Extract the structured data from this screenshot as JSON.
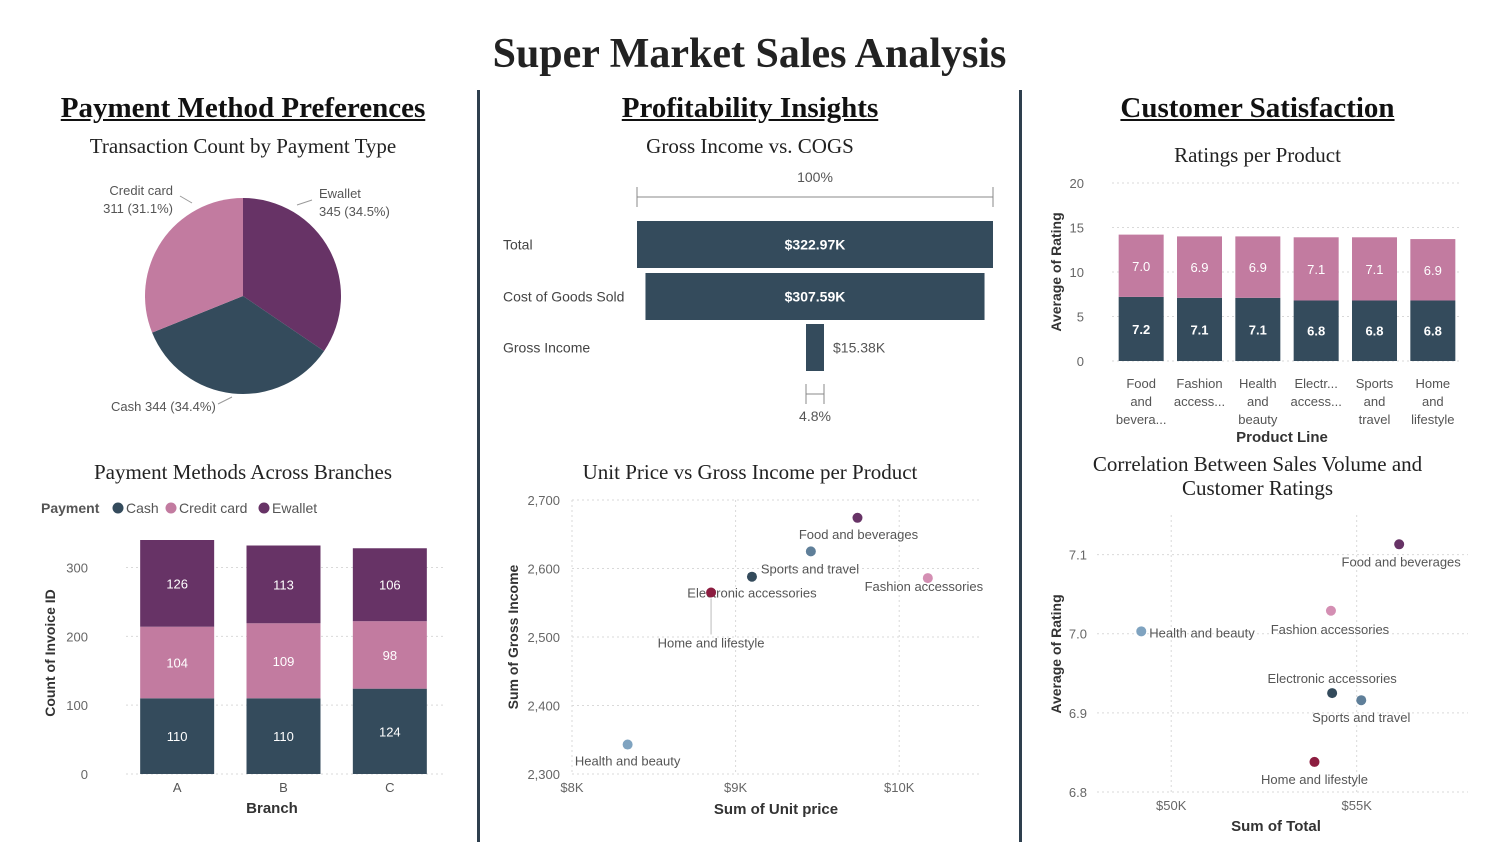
{
  "title": "Super Market Sales Analysis",
  "sections": {
    "payment": "Payment Method Preferences",
    "profit": "Profitability Insights",
    "satisfaction": "Customer Satisfaction"
  },
  "colors": {
    "cash": "#344b5c",
    "credit": "#c27ba0",
    "ewallet": "#673366",
    "funnel": "#344b5c"
  },
  "chart_data": [
    {
      "id": "pie",
      "type": "pie",
      "title": "Transaction Count by Payment Type",
      "slices": [
        {
          "label": "Ewallet",
          "value": 345,
          "pct": "34.5%",
          "color": "#673366"
        },
        {
          "label": "Cash",
          "value": 344,
          "pct": "34.4%",
          "color": "#344b5c"
        },
        {
          "label": "Credit card",
          "value": 311,
          "pct": "31.1%",
          "color": "#c27ba0"
        }
      ]
    },
    {
      "id": "funnel",
      "type": "bar",
      "title": "Gross Income vs. COGS",
      "top_label": "100%",
      "bottom_label": "4.8%",
      "categories": [
        "Total",
        "Cost of Goods Sold",
        "Gross Income"
      ],
      "values": [
        322.97,
        307.59,
        15.38
      ],
      "labels": [
        "$322.97K",
        "$307.59K",
        "$15.38K"
      ]
    },
    {
      "id": "rating_bars",
      "type": "bar",
      "title": "Ratings per Product",
      "xlabel": "Product Line",
      "ylabel": "Average of Rating",
      "ylim": [
        0,
        20
      ],
      "yticks": [
        0,
        5,
        10,
        15,
        20
      ],
      "categories": [
        [
          "Food",
          "and",
          "bevera..."
        ],
        [
          "Fashion",
          "access..."
        ],
        [
          "Health",
          "and",
          "beauty"
        ],
        [
          "Electr...",
          "access..."
        ],
        [
          "Sports",
          "and",
          "travel"
        ],
        [
          "Home",
          "and",
          "lifestyle"
        ]
      ],
      "series": [
        {
          "values": [
            7.2,
            7.1,
            7.1,
            6.8,
            6.8,
            6.8
          ],
          "color": "#344b5c"
        },
        {
          "values": [
            7.0,
            6.9,
            6.9,
            7.1,
            7.1,
            6.9
          ],
          "color": "#c27ba0"
        }
      ]
    },
    {
      "id": "branch_bars",
      "type": "bar",
      "title": "Payment Methods Across Branches",
      "legend_title": "Payment",
      "xlabel": "Branch",
      "ylabel": "Count of Invoice ID",
      "ylim": [
        0,
        340
      ],
      "yticks": [
        0,
        100,
        200,
        300
      ],
      "categories": [
        "A",
        "B",
        "C"
      ],
      "series": [
        {
          "name": "Cash",
          "values": [
            110,
            110,
            124
          ],
          "color": "#344b5c"
        },
        {
          "name": "Credit card",
          "values": [
            104,
            109,
            98
          ],
          "color": "#c27ba0"
        },
        {
          "name": "Ewallet",
          "values": [
            126,
            113,
            106
          ],
          "color": "#673366"
        }
      ]
    },
    {
      "id": "scatter_price",
      "type": "scatter",
      "title": "Unit Price vs Gross Income per Product",
      "xlabel": "Sum of Unit price",
      "ylabel": "Sum of Gross Income",
      "xlim": [
        8000,
        10500
      ],
      "ylim": [
        2300,
        2700
      ],
      "xticks": [
        8000,
        9000,
        10000
      ],
      "xtick_labels": [
        "$8K",
        "$9K",
        "$10K"
      ],
      "yticks": [
        2300,
        2400,
        2500,
        2600,
        2700
      ],
      "ytick_labels": [
        "2,300",
        "2,400",
        "2,500",
        "2,600",
        "2,700"
      ],
      "points": [
        {
          "label": "Food and beverages",
          "x": 9745,
          "y": 2674,
          "color": "#673366"
        },
        {
          "label": "Sports and travel",
          "x": 9460,
          "y": 2625,
          "color": "#5f7f99"
        },
        {
          "label": "Electronic accessories",
          "x": 9100,
          "y": 2588,
          "color": "#344b5c"
        },
        {
          "label": "Home and lifestyle",
          "x": 8850,
          "y": 2565,
          "color": "#8c1d40"
        },
        {
          "label": "Fashion accessories",
          "x": 10175,
          "y": 2586,
          "color": "#d48fb3"
        },
        {
          "label": "Health and beauty",
          "x": 8340,
          "y": 2343,
          "color": "#7fa3c0"
        }
      ]
    },
    {
      "id": "scatter_total",
      "type": "scatter",
      "title": "Correlation Between Sales Volume and Customer Ratings",
      "xlabel": "Sum of Total",
      "ylabel": "Average of Rating",
      "xlim": [
        48000,
        58000
      ],
      "ylim": [
        6.8,
        7.15
      ],
      "xticks": [
        50000,
        55000
      ],
      "xtick_labels": [
        "$50K",
        "$55K"
      ],
      "yticks": [
        6.8,
        6.9,
        7.0,
        7.1
      ],
      "ytick_labels": [
        "6.8",
        "6.9",
        "7.0",
        "7.1"
      ],
      "points": [
        {
          "label": "Food and beverages",
          "x": 56145,
          "y": 7.113,
          "color": "#673366"
        },
        {
          "label": "Fashion accessories",
          "x": 54306,
          "y": 7.029,
          "color": "#d48fb3"
        },
        {
          "label": "Health and beauty",
          "x": 49193,
          "y": 7.003,
          "color": "#7fa3c0"
        },
        {
          "label": "Electronic accessories",
          "x": 54338,
          "y": 6.925,
          "color": "#344b5c"
        },
        {
          "label": "Sports and travel",
          "x": 55123,
          "y": 6.916,
          "color": "#5f7f99"
        },
        {
          "label": "Home and lifestyle",
          "x": 53862,
          "y": 6.838,
          "color": "#8c1d40"
        }
      ]
    }
  ]
}
